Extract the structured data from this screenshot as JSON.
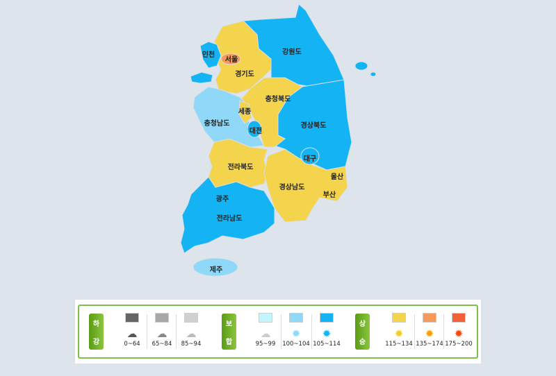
{
  "map": {
    "regions": [
      {
        "name": "서울",
        "level": "135~174",
        "color": "#f59a5a"
      },
      {
        "name": "인천",
        "level": "105~114",
        "color": "#14b4f4"
      },
      {
        "name": "경기도",
        "level": "115~134",
        "color": "#f4d44c"
      },
      {
        "name": "강원도",
        "level": "105~114",
        "color": "#14b4f4"
      },
      {
        "name": "충청북도",
        "level": "115~134",
        "color": "#f4d44c"
      },
      {
        "name": "세종",
        "level": "115~134",
        "color": "#f4d44c"
      },
      {
        "name": "충청남도",
        "level": "100~104",
        "color": "#90d8f8"
      },
      {
        "name": "대전",
        "level": "105~114",
        "color": "#14b4f4"
      },
      {
        "name": "경상북도",
        "level": "105~114",
        "color": "#14b4f4"
      },
      {
        "name": "대구",
        "level": "105~114",
        "color": "#14b4f4"
      },
      {
        "name": "전라북도",
        "level": "115~134",
        "color": "#f4d44c"
      },
      {
        "name": "경상남도",
        "level": "115~134",
        "color": "#f4d44c"
      },
      {
        "name": "울산",
        "level": "115~134",
        "color": "#f4d44c"
      },
      {
        "name": "부산",
        "level": "115~134",
        "color": "#f4d44c"
      },
      {
        "name": "광주",
        "level": "105~114",
        "color": "#14b4f4"
      },
      {
        "name": "전라남도",
        "level": "105~114",
        "color": "#14b4f4"
      },
      {
        "name": "제주",
        "level": "100~104",
        "color": "#90d8f8"
      }
    ]
  },
  "legend": {
    "groups": [
      {
        "label": [
          "하",
          "강"
        ],
        "items": [
          {
            "range": "0~64",
            "color": "#666666",
            "icon": "heavy-rain-cloud-icon"
          },
          {
            "range": "65~84",
            "color": "#a8a8a8",
            "icon": "rain-cloud-icon"
          },
          {
            "range": "85~94",
            "color": "#d0d0d0",
            "icon": "light-rain-cloud-icon"
          }
        ]
      },
      {
        "label": [
          "보",
          "합"
        ],
        "items": [
          {
            "range": "95~99",
            "color": "#c4f4fc",
            "icon": "cloud-icon"
          },
          {
            "range": "100~104",
            "color": "#90d8f8",
            "icon": "light-blue-burst-icon"
          },
          {
            "range": "105~114",
            "color": "#14b4f4",
            "icon": "blue-burst-icon"
          }
        ]
      },
      {
        "label": [
          "상",
          "승"
        ],
        "items": [
          {
            "range": "115~134",
            "color": "#f4d44c",
            "icon": "yellow-sun-icon"
          },
          {
            "range": "135~174",
            "color": "#f59a5a",
            "icon": "orange-sun-icon"
          },
          {
            "range": "175~200",
            "color": "#f0603a",
            "icon": "red-sun-icon"
          }
        ]
      }
    ]
  }
}
